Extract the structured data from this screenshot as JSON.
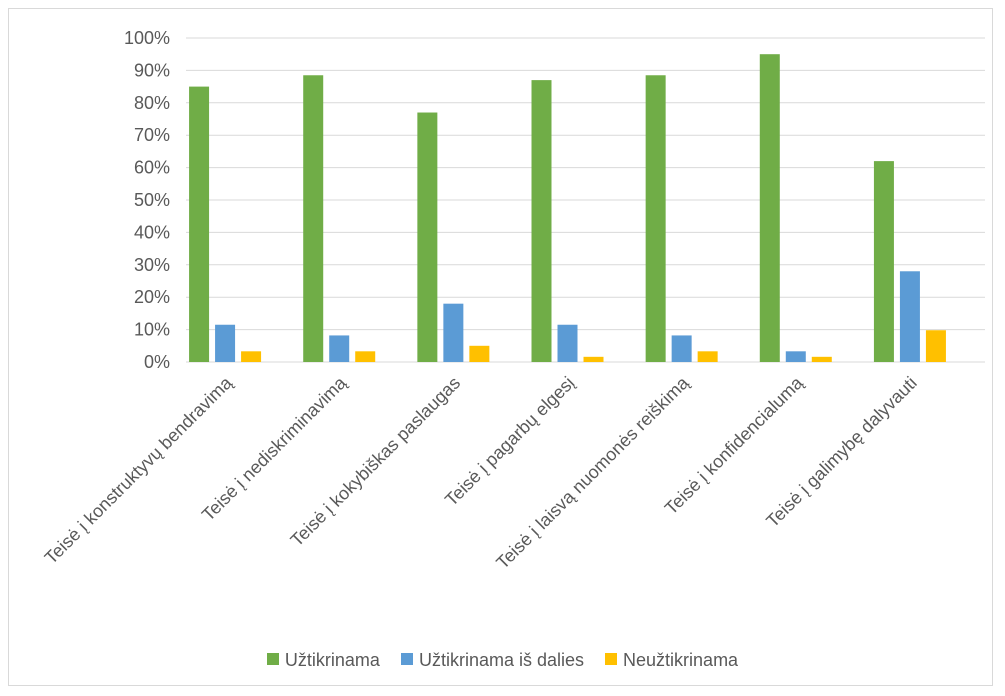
{
  "chart_data": {
    "type": "bar",
    "categories": [
      "Teisė į konstruktyvų bendravimą",
      "Teisė į nediskriminavimą",
      "Teisė į kokybiškas paslaugas",
      "Teisė į pagarbų elgesį",
      "Teisė į laisvą nuomonės reiškimą",
      "Teisė į konfidencialumą",
      "Teisė į galimybę dalyvauti"
    ],
    "series": [
      {
        "name": "Užtikrinama",
        "color": "#70ad47",
        "values": [
          85,
          88.5,
          77,
          87,
          88.5,
          95,
          62
        ]
      },
      {
        "name": "Užtikrinama iš dalies",
        "color": "#5b9bd5",
        "values": [
          11.5,
          8.2,
          18,
          11.5,
          8.2,
          3.3,
          28
        ]
      },
      {
        "name": "Neužtikrinama",
        "color": "#ffc000",
        "values": [
          3.3,
          3.3,
          5,
          1.6,
          3.3,
          1.6,
          9.8
        ]
      }
    ],
    "y_ticks": [
      "0%",
      "10%",
      "20%",
      "30%",
      "40%",
      "50%",
      "60%",
      "70%",
      "80%",
      "90%",
      "100%"
    ],
    "ylim": [
      0,
      100
    ],
    "grid": true,
    "legend_position": "bottom"
  }
}
